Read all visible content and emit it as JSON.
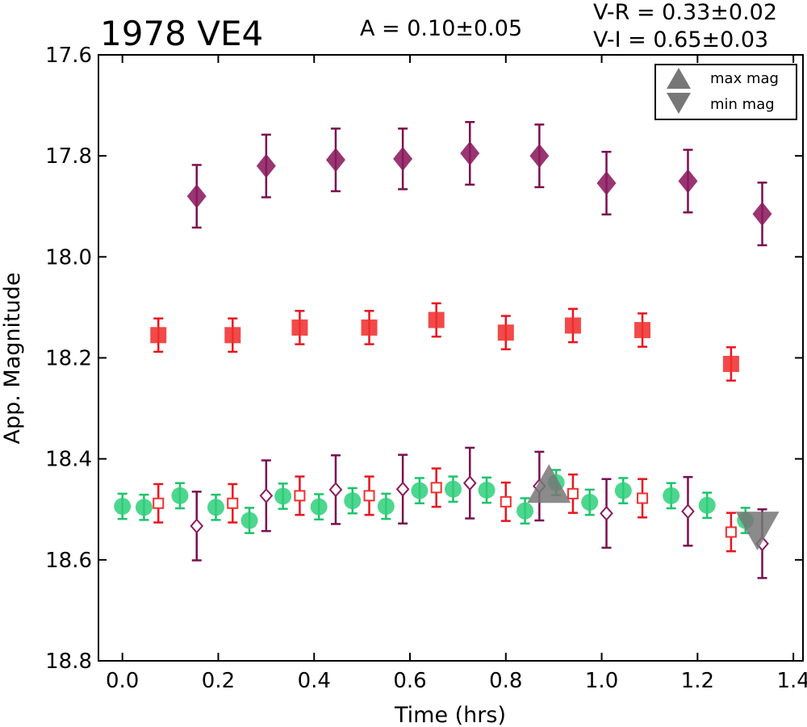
{
  "title": "1978 VE4",
  "amplitude_text": "A  = 0.10±0.05",
  "color_vr_text": "V-R = 0.33±0.02",
  "color_vi_text": "V-I  = 0.65±0.03",
  "chart_data": {
    "type": "scatter",
    "xlabel": "Time (hrs)",
    "ylabel": "App. Magnitude",
    "xlim": [
      -0.05,
      1.42
    ],
    "ylim": [
      18.8,
      17.6
    ],
    "y_inverted": true,
    "xticks": [
      "0.0",
      "0.2",
      "0.4",
      "0.6",
      "0.8",
      "1.0",
      "1.2",
      "1.4"
    ],
    "yticks": [
      "17.6",
      "17.8",
      "18.0",
      "18.2",
      "18.4",
      "18.6",
      "18.8"
    ],
    "legend": {
      "placement": "top-right",
      "entries": [
        {
          "label": "max mag",
          "marker": "triangle-up",
          "color": "#777777"
        },
        {
          "label": "min mag",
          "marker": "triangle-down",
          "color": "#777777"
        }
      ]
    },
    "series": [
      {
        "marker": "diamond-filled",
        "color": "#8b1a5e",
        "errcolor": "#7a0f4f",
        "points": [
          {
            "x": 0.155,
            "y": 17.88,
            "err": 0.062
          },
          {
            "x": 0.3,
            "y": 17.82,
            "err": 0.062
          },
          {
            "x": 0.445,
            "y": 17.808,
            "err": 0.062
          },
          {
            "x": 0.585,
            "y": 17.806,
            "err": 0.06
          },
          {
            "x": 0.725,
            "y": 17.795,
            "err": 0.062
          },
          {
            "x": 0.87,
            "y": 17.8,
            "err": 0.062
          },
          {
            "x": 1.01,
            "y": 17.854,
            "err": 0.062
          },
          {
            "x": 1.18,
            "y": 17.85,
            "err": 0.062
          },
          {
            "x": 1.335,
            "y": 17.915,
            "err": 0.062
          }
        ]
      },
      {
        "marker": "square-filled",
        "color": "#f03030",
        "errcolor": "#e8141e",
        "points": [
          {
            "x": 0.075,
            "y": 18.155,
            "err": 0.033
          },
          {
            "x": 0.23,
            "y": 18.155,
            "err": 0.033
          },
          {
            "x": 0.37,
            "y": 18.14,
            "err": 0.033
          },
          {
            "x": 0.515,
            "y": 18.14,
            "err": 0.033
          },
          {
            "x": 0.655,
            "y": 18.125,
            "err": 0.033
          },
          {
            "x": 0.8,
            "y": 18.15,
            "err": 0.033
          },
          {
            "x": 0.94,
            "y": 18.136,
            "err": 0.033
          },
          {
            "x": 1.085,
            "y": 18.145,
            "err": 0.033
          },
          {
            "x": 1.27,
            "y": 18.212,
            "err": 0.033
          }
        ]
      },
      {
        "marker": "circle-filled",
        "color": "#2ecf7a",
        "errcolor": "#1cc46a",
        "points": [
          {
            "x": 0.0,
            "y": 18.494,
            "err": 0.025
          },
          {
            "x": 0.045,
            "y": 18.496,
            "err": 0.025
          },
          {
            "x": 0.12,
            "y": 18.473,
            "err": 0.025
          },
          {
            "x": 0.195,
            "y": 18.496,
            "err": 0.025
          },
          {
            "x": 0.265,
            "y": 18.522,
            "err": 0.025
          },
          {
            "x": 0.335,
            "y": 18.474,
            "err": 0.025
          },
          {
            "x": 0.41,
            "y": 18.495,
            "err": 0.025
          },
          {
            "x": 0.48,
            "y": 18.483,
            "err": 0.025
          },
          {
            "x": 0.55,
            "y": 18.494,
            "err": 0.025
          },
          {
            "x": 0.62,
            "y": 18.463,
            "err": 0.025
          },
          {
            "x": 0.69,
            "y": 18.46,
            "err": 0.025
          },
          {
            "x": 0.76,
            "y": 18.462,
            "err": 0.025
          },
          {
            "x": 0.84,
            "y": 18.503,
            "err": 0.025
          },
          {
            "x": 0.905,
            "y": 18.447,
            "err": 0.025
          },
          {
            "x": 0.975,
            "y": 18.486,
            "err": 0.025
          },
          {
            "x": 1.045,
            "y": 18.463,
            "err": 0.025
          },
          {
            "x": 1.145,
            "y": 18.473,
            "err": 0.025
          },
          {
            "x": 1.22,
            "y": 18.492,
            "err": 0.025
          },
          {
            "x": 1.3,
            "y": 18.522,
            "err": 0.025
          }
        ]
      },
      {
        "marker": "square-open",
        "color": "#f03030",
        "errcolor": "#e8141e",
        "points": [
          {
            "x": 0.075,
            "y": 18.488,
            "err": 0.038
          },
          {
            "x": 0.23,
            "y": 18.488,
            "err": 0.038
          },
          {
            "x": 0.37,
            "y": 18.473,
            "err": 0.038
          },
          {
            "x": 0.515,
            "y": 18.473,
            "err": 0.038
          },
          {
            "x": 0.655,
            "y": 18.457,
            "err": 0.038
          },
          {
            "x": 0.8,
            "y": 18.485,
            "err": 0.038
          },
          {
            "x": 0.94,
            "y": 18.469,
            "err": 0.038
          },
          {
            "x": 1.085,
            "y": 18.478,
            "err": 0.038
          },
          {
            "x": 1.27,
            "y": 18.545,
            "err": 0.038
          }
        ]
      },
      {
        "marker": "diamond-open",
        "color": "#8b1a5e",
        "errcolor": "#7a0f4f",
        "points": [
          {
            "x": 0.155,
            "y": 18.533,
            "err": 0.068
          },
          {
            "x": 0.3,
            "y": 18.473,
            "err": 0.07
          },
          {
            "x": 0.445,
            "y": 18.461,
            "err": 0.068
          },
          {
            "x": 0.585,
            "y": 18.46,
            "err": 0.068
          },
          {
            "x": 0.725,
            "y": 18.448,
            "err": 0.07
          },
          {
            "x": 0.87,
            "y": 18.454,
            "err": 0.068
          },
          {
            "x": 1.01,
            "y": 18.508,
            "err": 0.068
          },
          {
            "x": 1.18,
            "y": 18.504,
            "err": 0.068
          },
          {
            "x": 1.335,
            "y": 18.568,
            "err": 0.068
          }
        ]
      },
      {
        "marker": "triangle-up",
        "color": "#777777",
        "errcolor": "#777777",
        "points": [
          {
            "x": 0.89,
            "y": 18.46,
            "err": 0
          }
        ]
      },
      {
        "marker": "triangle-down",
        "color": "#777777",
        "errcolor": "#777777",
        "points": [
          {
            "x": 1.325,
            "y": 18.535,
            "err": 0
          }
        ]
      }
    ]
  }
}
